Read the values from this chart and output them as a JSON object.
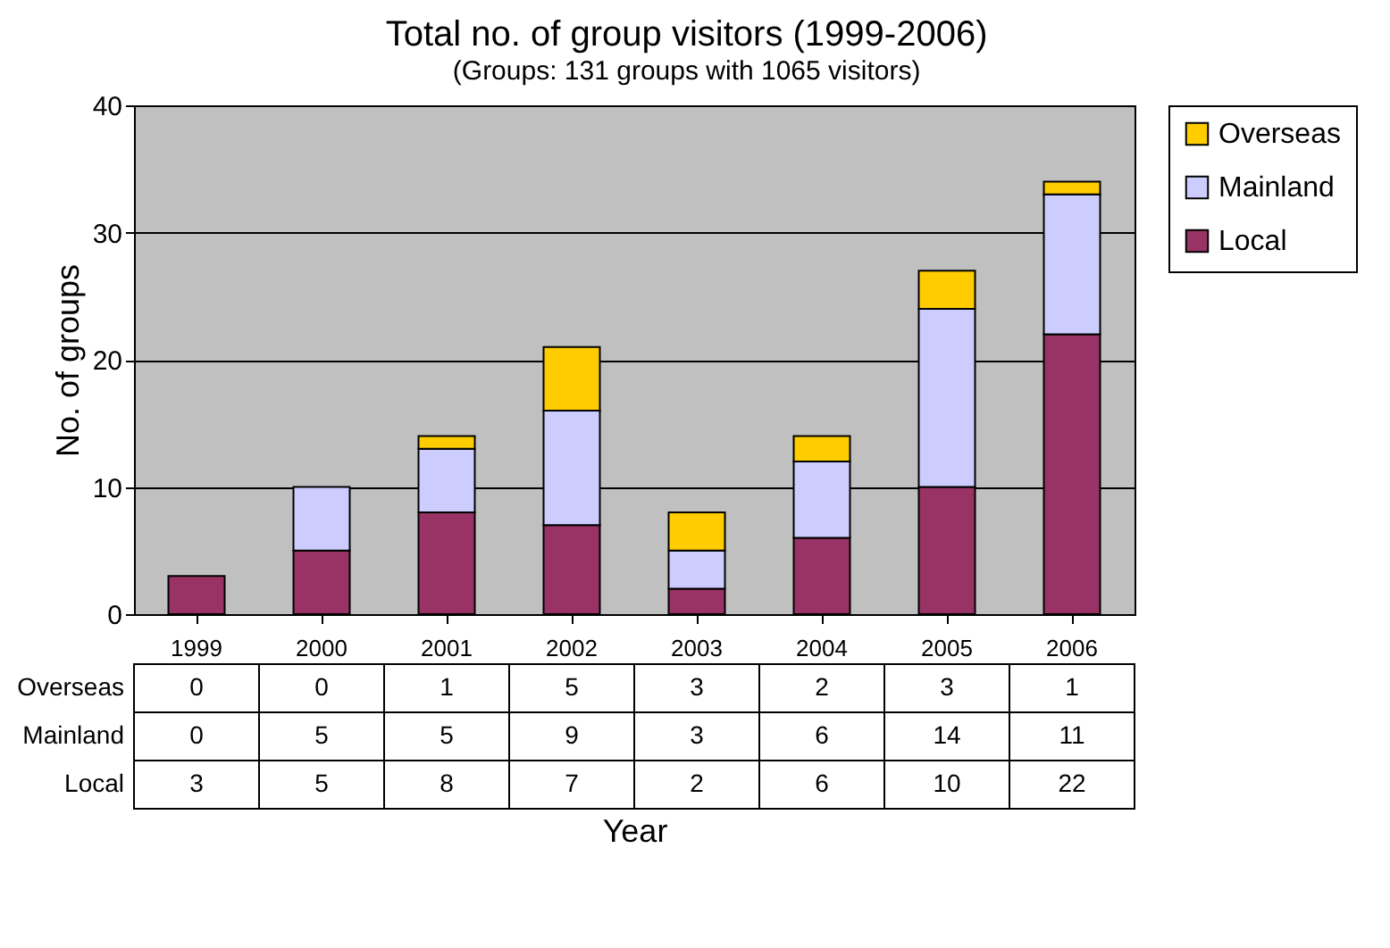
{
  "chart_data": {
    "type": "bar",
    "title": "Total no. of group visitors (1999-2006)",
    "subtitle": "(Groups: 131 groups with 1065 visitors)",
    "xlabel": "Year",
    "ylabel": "No. of groups",
    "categories": [
      "1999",
      "2000",
      "2001",
      "2002",
      "2003",
      "2004",
      "2005",
      "2006"
    ],
    "series": [
      {
        "name": "Local",
        "color": "#993366",
        "values": [
          3,
          5,
          8,
          7,
          2,
          6,
          10,
          22
        ]
      },
      {
        "name": "Mainland",
        "color": "#ccccff",
        "values": [
          0,
          5,
          5,
          9,
          3,
          6,
          14,
          11
        ]
      },
      {
        "name": "Overseas",
        "color": "#ffcc00",
        "values": [
          0,
          0,
          1,
          5,
          3,
          2,
          3,
          1
        ]
      }
    ],
    "stacked": true,
    "ylim": [
      0,
      40
    ],
    "yticks": [
      0,
      10,
      20,
      30,
      40
    ],
    "grid": "y",
    "legend": "right",
    "data_labels": true
  }
}
